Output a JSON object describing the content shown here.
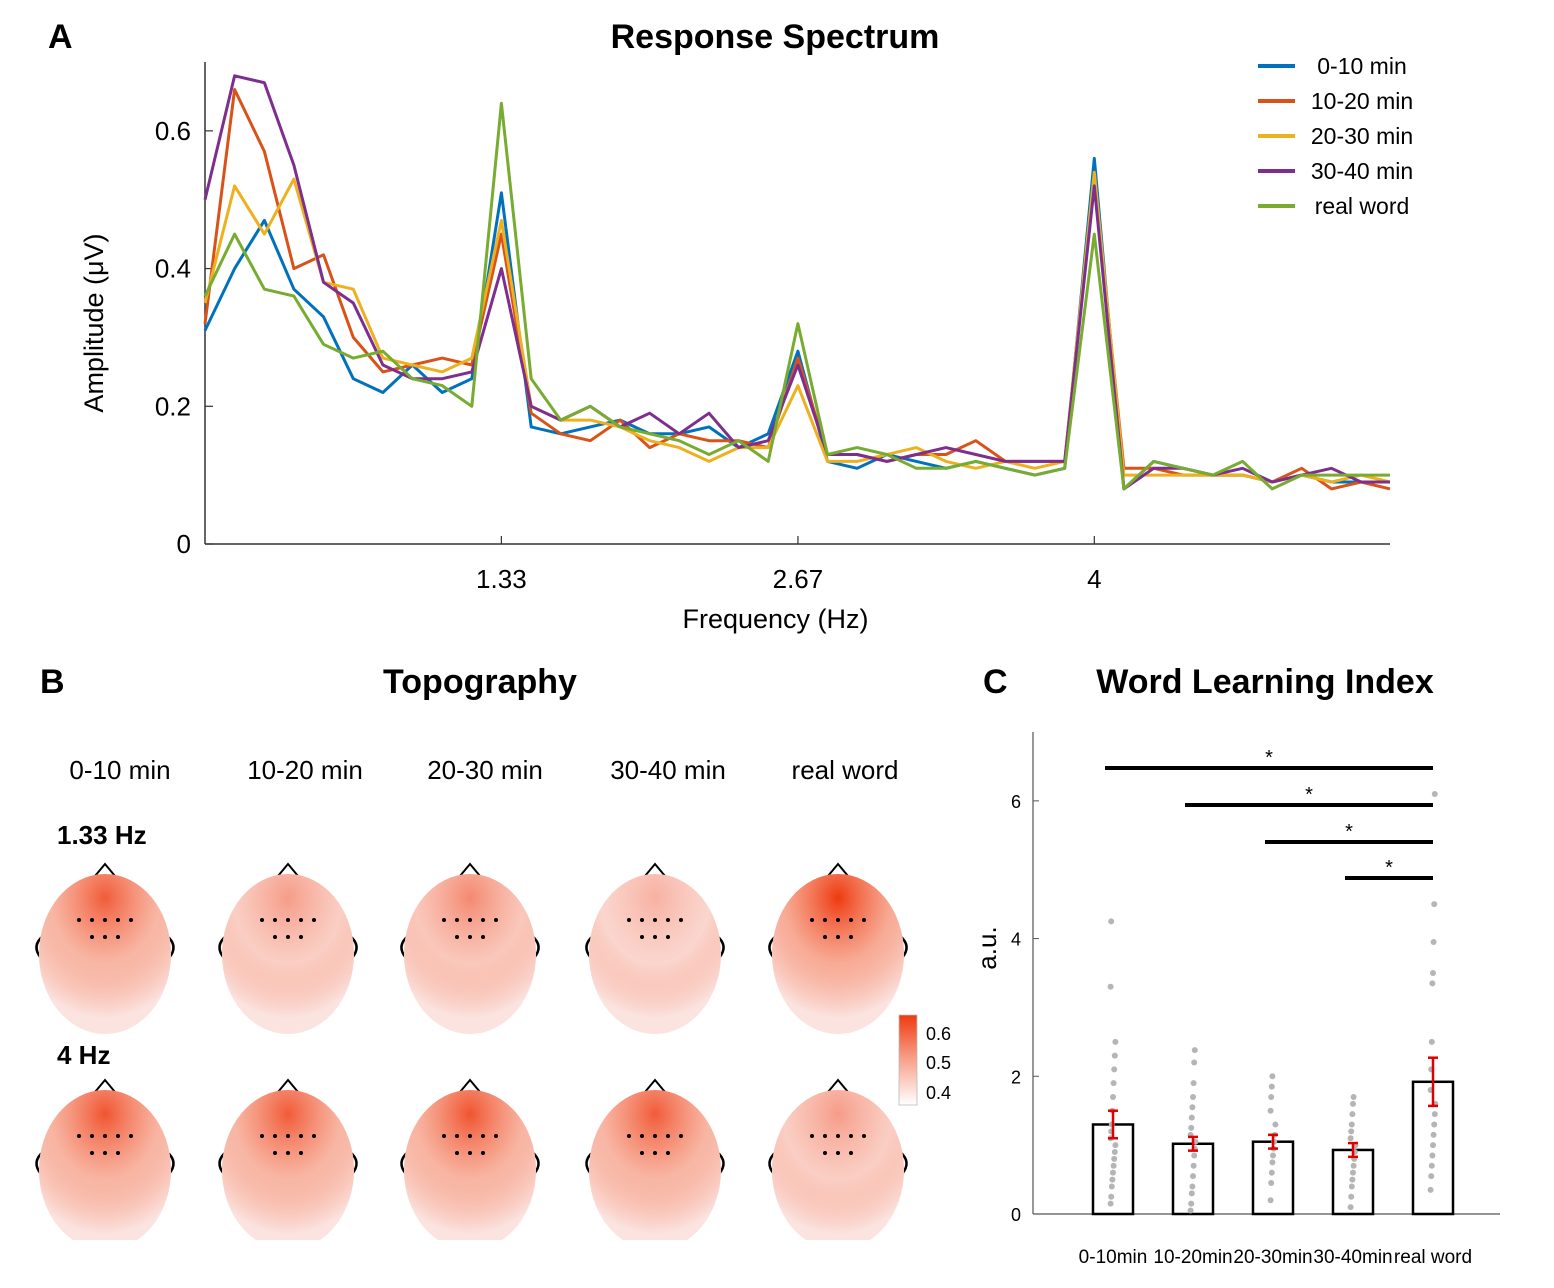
{
  "panels": {
    "A": {
      "letter": "A",
      "title": "Response Spectrum"
    },
    "B": {
      "letter": "B",
      "title": "Topography"
    },
    "C": {
      "letter": "C",
      "title": "Word Learning Index"
    }
  },
  "colorbar": {
    "ticks": [
      "0.6",
      "0.5",
      "0.4"
    ],
    "range": [
      0.4,
      0.6
    ]
  },
  "topography": {
    "columns": [
      "0-10 min",
      "10-20 min",
      "20-30 min",
      "30-40 min",
      "real word"
    ],
    "rows": [
      "1.33 Hz",
      "4 Hz"
    ],
    "intensity": [
      [
        0.55,
        0.45,
        0.48,
        0.42,
        0.65
      ],
      [
        0.56,
        0.55,
        0.56,
        0.55,
        0.45
      ]
    ]
  },
  "chart_data": [
    {
      "type": "line",
      "title": "Response Spectrum",
      "xlabel": "Frequency (Hz)",
      "ylabel": "Amplitude  (μV)",
      "xlim": [
        0,
        5.33
      ],
      "ylim": [
        0,
        0.7
      ],
      "xticks": [
        "1.33",
        "2.67",
        "4"
      ],
      "xtick_values": [
        1.333,
        2.667,
        4.0
      ],
      "yticks": [
        "0",
        "0.2",
        "0.4",
        "0.6"
      ],
      "ytick_values": [
        0,
        0.2,
        0.4,
        0.6
      ],
      "legend_position": "top-right",
      "series": [
        {
          "name": "0-10 min",
          "color": "#0072BD",
          "x": [
            0,
            0.133,
            0.267,
            0.4,
            0.533,
            0.667,
            0.8,
            0.933,
            1.067,
            1.2,
            1.333,
            1.467,
            1.6,
            1.733,
            1.867,
            2.0,
            2.133,
            2.267,
            2.4,
            2.533,
            2.667,
            2.8,
            2.933,
            3.067,
            3.2,
            3.333,
            3.467,
            3.6,
            3.733,
            3.867,
            4.0,
            4.133,
            4.267,
            4.4,
            4.533,
            4.667,
            4.8,
            4.933,
            5.067,
            5.2,
            5.33
          ],
          "values": [
            0.31,
            0.4,
            0.47,
            0.37,
            0.33,
            0.24,
            0.22,
            0.26,
            0.22,
            0.24,
            0.51,
            0.17,
            0.16,
            0.17,
            0.18,
            0.16,
            0.16,
            0.17,
            0.14,
            0.16,
            0.28,
            0.12,
            0.11,
            0.13,
            0.12,
            0.11,
            0.12,
            0.11,
            0.1,
            0.11,
            0.56,
            0.08,
            0.12,
            0.11,
            0.1,
            0.1,
            0.09,
            0.1,
            0.09,
            0.09,
            0.09
          ]
        },
        {
          "name": "10-20 min",
          "color": "#D95319",
          "x": [
            0,
            0.133,
            0.267,
            0.4,
            0.533,
            0.667,
            0.8,
            0.933,
            1.067,
            1.2,
            1.333,
            1.467,
            1.6,
            1.733,
            1.867,
            2.0,
            2.133,
            2.267,
            2.4,
            2.533,
            2.667,
            2.8,
            2.933,
            3.067,
            3.2,
            3.333,
            3.467,
            3.6,
            3.733,
            3.867,
            4.0,
            4.133,
            4.267,
            4.4,
            4.533,
            4.667,
            4.8,
            4.933,
            5.067,
            5.2,
            5.33
          ],
          "values": [
            0.32,
            0.66,
            0.57,
            0.4,
            0.42,
            0.3,
            0.25,
            0.26,
            0.27,
            0.26,
            0.45,
            0.19,
            0.16,
            0.15,
            0.18,
            0.14,
            0.16,
            0.15,
            0.15,
            0.14,
            0.27,
            0.13,
            0.13,
            0.12,
            0.13,
            0.13,
            0.15,
            0.12,
            0.12,
            0.12,
            0.53,
            0.11,
            0.11,
            0.1,
            0.1,
            0.1,
            0.09,
            0.11,
            0.08,
            0.09,
            0.08
          ]
        },
        {
          "name": "20-30 min",
          "color": "#EDB120",
          "x": [
            0,
            0.133,
            0.267,
            0.4,
            0.533,
            0.667,
            0.8,
            0.933,
            1.067,
            1.2,
            1.333,
            1.467,
            1.6,
            1.733,
            1.867,
            2.0,
            2.133,
            2.267,
            2.4,
            2.533,
            2.667,
            2.8,
            2.933,
            3.067,
            3.2,
            3.333,
            3.467,
            3.6,
            3.733,
            3.867,
            4.0,
            4.133,
            4.267,
            4.4,
            4.533,
            4.667,
            4.8,
            4.933,
            5.067,
            5.2,
            5.33
          ],
          "values": [
            0.35,
            0.52,
            0.45,
            0.53,
            0.38,
            0.37,
            0.27,
            0.26,
            0.25,
            0.27,
            0.47,
            0.2,
            0.18,
            0.18,
            0.17,
            0.15,
            0.14,
            0.12,
            0.14,
            0.14,
            0.23,
            0.12,
            0.12,
            0.13,
            0.14,
            0.12,
            0.11,
            0.12,
            0.11,
            0.12,
            0.54,
            0.1,
            0.1,
            0.1,
            0.1,
            0.1,
            0.09,
            0.1,
            0.09,
            0.1,
            0.09
          ]
        },
        {
          "name": "30-40 min",
          "color": "#7E2F8E",
          "x": [
            0,
            0.133,
            0.267,
            0.4,
            0.533,
            0.667,
            0.8,
            0.933,
            1.067,
            1.2,
            1.333,
            1.467,
            1.6,
            1.733,
            1.867,
            2.0,
            2.133,
            2.267,
            2.4,
            2.533,
            2.667,
            2.8,
            2.933,
            3.067,
            3.2,
            3.333,
            3.467,
            3.6,
            3.733,
            3.867,
            4.0,
            4.133,
            4.267,
            4.4,
            4.533,
            4.667,
            4.8,
            4.933,
            5.067,
            5.2,
            5.33
          ],
          "values": [
            0.5,
            0.68,
            0.67,
            0.55,
            0.38,
            0.35,
            0.26,
            0.24,
            0.24,
            0.25,
            0.4,
            0.2,
            0.18,
            0.2,
            0.17,
            0.19,
            0.16,
            0.19,
            0.14,
            0.15,
            0.26,
            0.13,
            0.13,
            0.12,
            0.13,
            0.14,
            0.13,
            0.12,
            0.12,
            0.12,
            0.52,
            0.08,
            0.11,
            0.11,
            0.1,
            0.11,
            0.09,
            0.1,
            0.11,
            0.09,
            0.09
          ]
        },
        {
          "name": "real word",
          "color": "#77AC30",
          "x": [
            0,
            0.133,
            0.267,
            0.4,
            0.533,
            0.667,
            0.8,
            0.933,
            1.067,
            1.2,
            1.333,
            1.467,
            1.6,
            1.733,
            1.867,
            2.0,
            2.133,
            2.267,
            2.4,
            2.533,
            2.667,
            2.8,
            2.933,
            3.067,
            3.2,
            3.333,
            3.467,
            3.6,
            3.733,
            3.867,
            4.0,
            4.133,
            4.267,
            4.4,
            4.533,
            4.667,
            4.8,
            4.933,
            5.067,
            5.2,
            5.33
          ],
          "values": [
            0.36,
            0.45,
            0.37,
            0.36,
            0.29,
            0.27,
            0.28,
            0.24,
            0.23,
            0.2,
            0.64,
            0.24,
            0.18,
            0.2,
            0.17,
            0.16,
            0.15,
            0.13,
            0.15,
            0.12,
            0.32,
            0.13,
            0.14,
            0.13,
            0.11,
            0.11,
            0.12,
            0.11,
            0.1,
            0.11,
            0.45,
            0.08,
            0.12,
            0.11,
            0.1,
            0.12,
            0.08,
            0.1,
            0.1,
            0.1,
            0.1
          ]
        }
      ]
    },
    {
      "type": "bar",
      "title": "Word Learning Index",
      "ylabel": "a.u.",
      "categories": [
        "0-10min",
        "10-20min",
        "20-30min",
        "30-40min",
        "real word"
      ],
      "values": [
        1.3,
        1.02,
        1.05,
        0.93,
        1.92
      ],
      "errors": [
        0.2,
        0.1,
        0.1,
        0.1,
        0.35
      ],
      "ylim": [
        0,
        7
      ],
      "yticks": [
        "0",
        "2",
        "4",
        "6"
      ],
      "ytick_values": [
        0,
        2,
        4,
        6
      ],
      "points": [
        [
          0.15,
          0.25,
          0.4,
          0.5,
          0.6,
          0.7,
          0.8,
          0.9,
          1.0,
          1.1,
          1.2,
          1.3,
          1.5,
          1.7,
          1.9,
          2.1,
          2.3,
          2.5,
          3.3,
          4.25
        ],
        [
          0.05,
          0.15,
          0.3,
          0.4,
          0.55,
          0.7,
          0.85,
          0.95,
          1.05,
          1.15,
          1.25,
          1.4,
          1.55,
          1.7,
          1.9,
          2.2,
          2.38
        ],
        [
          0.2,
          0.45,
          0.6,
          0.75,
          0.85,
          0.95,
          1.05,
          1.15,
          1.3,
          1.5,
          1.7,
          1.85,
          2.0
        ],
        [
          0.1,
          0.25,
          0.4,
          0.5,
          0.6,
          0.7,
          0.8,
          0.9,
          1.0,
          1.1,
          1.2,
          1.3,
          1.45,
          1.6,
          1.7
        ],
        [
          0.35,
          0.55,
          0.7,
          0.85,
          1.0,
          1.15,
          1.3,
          1.45,
          1.6,
          1.8,
          2.1,
          2.5,
          3.35,
          3.5,
          3.95,
          4.5,
          6.1
        ]
      ],
      "significance": [
        {
          "from": "0-10min",
          "to": "real word",
          "label": "*"
        },
        {
          "from": "10-20min",
          "to": "real word",
          "label": "*"
        },
        {
          "from": "20-30min",
          "to": "real word",
          "label": "*"
        },
        {
          "from": "30-40min",
          "to": "real word",
          "label": "*"
        }
      ]
    }
  ]
}
